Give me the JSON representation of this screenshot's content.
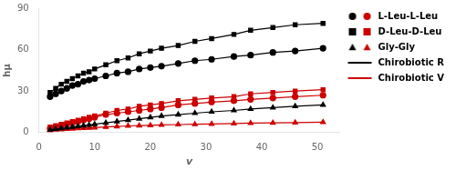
{
  "chart_data": {
    "type": "line",
    "xlabel": "v",
    "ylabel": "hμ",
    "x": [
      2,
      3,
      4,
      5,
      6,
      7,
      8,
      9,
      10,
      12,
      14,
      16,
      18,
      20,
      22,
      25,
      28,
      31,
      35,
      38,
      42,
      46,
      51
    ],
    "xlim": [
      0,
      54
    ],
    "ylim": [
      0,
      90
    ],
    "xticks": [
      0,
      10,
      20,
      30,
      40,
      50
    ],
    "yticks": [
      0,
      30,
      60,
      90
    ],
    "grid": false,
    "legend": "right",
    "series": [
      {
        "name": "L-Leu-L-Leu",
        "column": "Chirobiotic R",
        "color": "#000000",
        "marker": "circle",
        "values": [
          26,
          28,
          30,
          32,
          34,
          35,
          37,
          38,
          39,
          41,
          43,
          44,
          46,
          47,
          48,
          50,
          52,
          53,
          55,
          56,
          58,
          59,
          61
        ]
      },
      {
        "name": "D-Leu-D-Leu",
        "column": "Chirobiotic R",
        "color": "#000000",
        "marker": "square",
        "values": [
          29,
          32,
          35,
          37,
          39,
          41,
          43,
          44,
          46,
          49,
          52,
          54,
          57,
          59,
          61,
          63,
          66,
          68,
          71,
          74,
          76,
          78,
          79
        ]
      },
      {
        "name": "Gly-Gly",
        "column": "Chirobiotic R",
        "color": "#000000",
        "marker": "triangle",
        "values": [
          2,
          2.5,
          3,
          3.5,
          4,
          4.5,
          5,
          5.5,
          6,
          7,
          8,
          9,
          10,
          11,
          12,
          13,
          14,
          15,
          16,
          17,
          18,
          19,
          20
        ]
      },
      {
        "name": "L-Leu-L-Leu",
        "column": "Chirobiotic V",
        "color": "#cc0000",
        "marker": "circle",
        "values": [
          3,
          4,
          5,
          6,
          7,
          8,
          9,
          10,
          11,
          13,
          14,
          15,
          16,
          17,
          18,
          20,
          21,
          22,
          23,
          24,
          25,
          26,
          27
        ]
      },
      {
        "name": "D-Leu-D-Leu",
        "column": "Chirobiotic V",
        "color": "#cc0000",
        "marker": "square",
        "values": [
          4,
          5,
          6,
          7,
          8,
          9,
          10,
          11,
          12,
          14,
          16,
          17,
          19,
          20,
          21,
          23,
          24,
          25,
          26,
          28,
          29,
          30,
          31
        ]
      },
      {
        "name": "Gly-Gly",
        "column": "Chirobiotic V",
        "color": "#cc0000",
        "marker": "triangle",
        "values": [
          1.5,
          2,
          2.2,
          2.5,
          2.8,
          3,
          3.2,
          3.4,
          3.6,
          4,
          4.4,
          4.8,
          5,
          5.2,
          5.5,
          5.8,
          6,
          6.2,
          6.5,
          6.8,
          7,
          7.2,
          7.5
        ]
      }
    ]
  }
}
